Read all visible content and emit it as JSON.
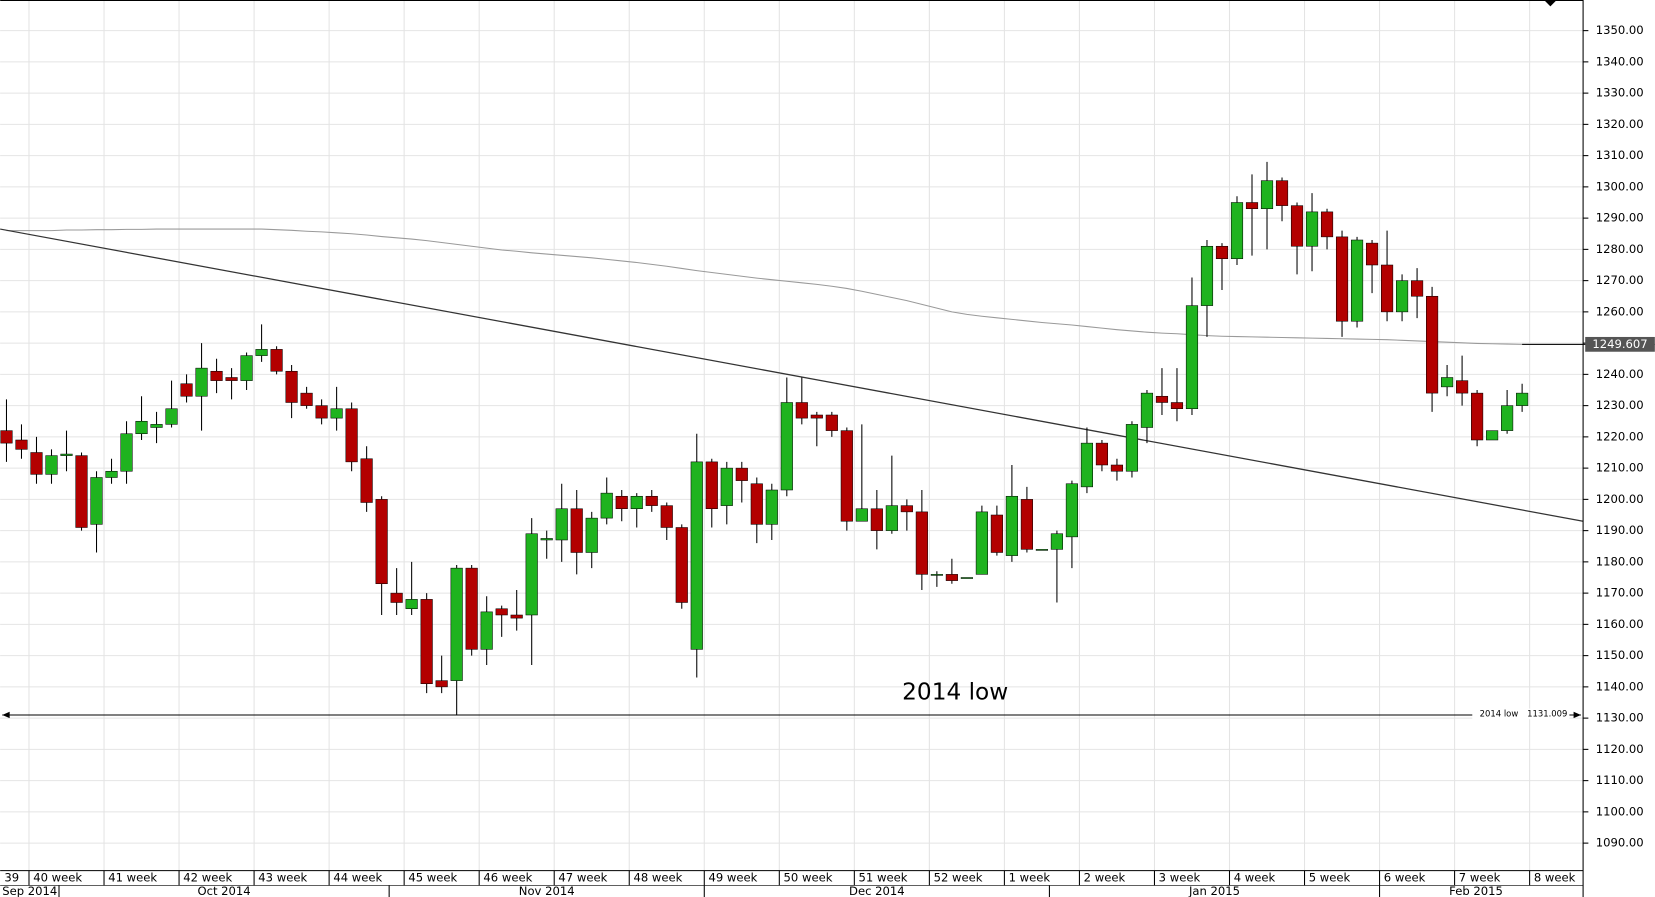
{
  "chart_data": {
    "type": "candlestick",
    "open": [
      1222,
      1219,
      1215,
      1208,
      1214,
      1214,
      1192,
      1207,
      1209,
      1221,
      1223,
      1224,
      1237,
      1233,
      1241,
      1239,
      1238,
      1246,
      1248,
      1241,
      1234,
      1230,
      1226,
      1229,
      1213,
      1200,
      1170,
      1165,
      1168,
      1142,
      1142,
      1178,
      1152,
      1165,
      1163,
      1163,
      1187,
      1187,
      1197,
      1183,
      1194,
      1201,
      1197,
      1201,
      1198,
      1191,
      1152,
      1212,
      1198,
      1210,
      1205,
      1192,
      1203,
      1231,
      1227,
      1227,
      1222,
      1193,
      1197,
      1190,
      1198,
      1196,
      1176,
      1176,
      1175,
      1176,
      1195,
      1182,
      1200,
      1184,
      1184,
      1188,
      1204,
      1218,
      1211,
      1209,
      1223,
      1233,
      1231,
      1229,
      1262,
      1281,
      1277,
      1295,
      1293,
      1302,
      1294,
      1281,
      1292,
      1284,
      1257,
      1282,
      1275,
      1260,
      1270,
      1265,
      1236,
      1238,
      1234,
      1219,
      1222,
      1230
    ],
    "high": [
      1232,
      1224,
      1220,
      1216,
      1222,
      1215,
      1209,
      1213,
      1225,
      1233,
      1228,
      1238,
      1240,
      1250,
      1245,
      1242,
      1247,
      1256,
      1249,
      1243,
      1236,
      1232,
      1236,
      1231,
      1217,
      1201,
      1178,
      1180,
      1170,
      1150,
      1179,
      1179,
      1169,
      1166,
      1171,
      1194,
      1190,
      1205,
      1203,
      1196,
      1207,
      1203,
      1202,
      1203,
      1199,
      1192,
      1221,
      1213,
      1212,
      1212,
      1207,
      1205,
      1239,
      1239,
      1228,
      1228,
      1223,
      1224,
      1203,
      1214,
      1200,
      1203,
      1177,
      1181,
      1175,
      1198,
      1198,
      1211,
      1204,
      1184,
      1190,
      1206,
      1223,
      1219,
      1213,
      1225,
      1235,
      1242,
      1242,
      1271,
      1283,
      1282,
      1297,
      1304,
      1308,
      1303,
      1295,
      1298,
      1293,
      1286,
      1284,
      1283,
      1286,
      1272,
      1274,
      1268,
      1243,
      1246,
      1235,
      1222,
      1235,
      1237
    ],
    "low": [
      1212,
      1213,
      1205,
      1205,
      1209,
      1190,
      1183,
      1205,
      1205,
      1219,
      1218,
      1223,
      1231,
      1222,
      1234,
      1232,
      1235,
      1244,
      1240,
      1226,
      1229,
      1224,
      1222,
      1209,
      1196,
      1163,
      1163,
      1163,
      1138,
      1138,
      1131,
      1150,
      1147,
      1156,
      1158,
      1147,
      1181,
      1180,
      1176,
      1178,
      1192,
      1193,
      1191,
      1196,
      1187,
      1165,
      1143,
      1191,
      1192,
      1199,
      1186,
      1187,
      1201,
      1224,
      1217,
      1220,
      1190,
      1193,
      1184,
      1189,
      1190,
      1171,
      1172,
      1173,
      1175,
      1176,
      1182,
      1180,
      1183,
      1184,
      1167,
      1178,
      1202,
      1209,
      1206,
      1207,
      1218,
      1227,
      1225,
      1227,
      1252,
      1267,
      1275,
      1278,
      1280,
      1289,
      1272,
      1273,
      1280,
      1252,
      1255,
      1266,
      1257,
      1257,
      1258,
      1228,
      1233,
      1230,
      1217,
      1219,
      1221,
      1228
    ],
    "close": [
      1218,
      1216,
      1208,
      1214,
      1214.5,
      1191,
      1207,
      1209,
      1221,
      1225,
      1224,
      1229,
      1233,
      1242,
      1238,
      1238,
      1246,
      1248,
      1241,
      1231,
      1230,
      1226,
      1229,
      1212,
      1199,
      1173,
      1167,
      1168,
      1141,
      1140,
      1178,
      1152,
      1164,
      1163,
      1162,
      1189,
      1187.5,
      1197,
      1183,
      1194,
      1202,
      1197,
      1201,
      1198,
      1191,
      1167,
      1212,
      1197,
      1210,
      1206,
      1192,
      1203,
      1231,
      1226,
      1226,
      1222,
      1193,
      1197,
      1190,
      1198,
      1196,
      1176,
      1176,
      1174,
      1175,
      1196,
      1183,
      1201,
      1184,
      1184,
      1189,
      1205,
      1218,
      1211,
      1209,
      1224,
      1234,
      1231,
      1229,
      1262,
      1281,
      1277,
      1295,
      1293,
      1302,
      1294,
      1281,
      1292,
      1284,
      1257,
      1283,
      1275,
      1260,
      1270,
      1265,
      1234,
      1239,
      1234,
      1219,
      1222,
      1230,
      1234
    ],
    "up_color": "#1fb31f",
    "down_color": "#b30000",
    "moving_average": {
      "color": "#9a9a9a",
      "values": [
        1286,
        1286,
        1286,
        1286,
        1286.2,
        1286.2,
        1286.3,
        1286.3,
        1286.4,
        1286.4,
        1286.5,
        1286.5,
        1286.5,
        1286.5,
        1286.5,
        1286.5,
        1286.5,
        1286.5,
        1286.3,
        1286.1,
        1285.8,
        1285.6,
        1285.3,
        1285,
        1284.6,
        1284.1,
        1283.7,
        1283.3,
        1282.8,
        1282.2,
        1281.6,
        1281,
        1280.4,
        1279.8,
        1279.4,
        1278.9,
        1278.5,
        1278.1,
        1277.7,
        1277.3,
        1276.8,
        1276.3,
        1275.8,
        1275.2,
        1274.6,
        1273.9,
        1273.2,
        1272.6,
        1272,
        1271.4,
        1270.8,
        1270.3,
        1269.8,
        1269.3,
        1268.8,
        1268.2,
        1267.5,
        1266.6,
        1265.6,
        1264.6,
        1263.6,
        1262.4,
        1261.2,
        1260,
        1259.2,
        1258.6,
        1258.1,
        1257.6,
        1257.1,
        1256.6,
        1256.2,
        1255.8,
        1255.3,
        1254.8,
        1254.3,
        1253.9,
        1253.5,
        1253.2,
        1253,
        1252.7,
        1252.4,
        1252.2,
        1252.1,
        1252,
        1251.9,
        1251.8,
        1251.7,
        1251.6,
        1251.5,
        1251.4,
        1251.3,
        1251.2,
        1251.1,
        1250.9,
        1250.7,
        1250.5,
        1250.3,
        1250.1,
        1249.9,
        1249.8,
        1249.7,
        1249.6
      ],
      "last": {
        "value": 1249.607,
        "label": "1249.607"
      }
    },
    "trendline": {
      "color": "#333333",
      "values": [
        1286.5,
        1193
      ]
    },
    "support": {
      "name": "2014 low",
      "value": 1131.009,
      "label": "1131.009"
    },
    "annotation": "2014 low",
    "week_labels": [
      "39",
      "40 week",
      "41 week",
      "42 week",
      "43 week",
      "44 week",
      "45 week",
      "46 week",
      "47 week",
      "48 week",
      "49 week",
      "50 week",
      "51 week",
      "52 week",
      "1 week",
      "2 week",
      "3 week",
      "4 week",
      "5 week",
      "6 week",
      "7 week",
      "8 week"
    ],
    "month_labels": [
      "Sep 2014",
      "Oct 2014",
      "Nov 2014",
      "Dec 2014",
      "Jan 2015",
      "Feb 2015"
    ],
    "ylim": [
      1081.2,
      1359.8
    ],
    "yticks": [
      {
        "value": 1090,
        "label": "1090.00"
      },
      {
        "value": 1100,
        "label": "1100.00"
      },
      {
        "value": 1110,
        "label": "1110.00"
      },
      {
        "value": 1120,
        "label": "1120.00"
      },
      {
        "value": 1130,
        "label": "1130.00"
      },
      {
        "value": 1140,
        "label": "1140.00"
      },
      {
        "value": 1150,
        "label": "1150.00"
      },
      {
        "value": 1160,
        "label": "1160.00"
      },
      {
        "value": 1170,
        "label": "1170.00"
      },
      {
        "value": 1180,
        "label": "1180.00"
      },
      {
        "value": 1190,
        "label": "1190.00"
      },
      {
        "value": 1200,
        "label": "1200.00"
      },
      {
        "value": 1210,
        "label": "1210.00"
      },
      {
        "value": 1220,
        "label": "1220.00"
      },
      {
        "value": 1230,
        "label": "1230.00"
      },
      {
        "value": 1240,
        "label": "1240.00"
      },
      {
        "value": 1250,
        "label": "1250.00"
      },
      {
        "value": 1260,
        "label": "1260.00"
      },
      {
        "value": 1270,
        "label": "1270.00"
      },
      {
        "value": 1280,
        "label": "1280.00"
      },
      {
        "value": 1290,
        "label": "1290.00"
      },
      {
        "value": 1300,
        "label": "1300.00"
      },
      {
        "value": 1310,
        "label": "1310.00"
      },
      {
        "value": 1320,
        "label": "1320.00"
      },
      {
        "value": 1330,
        "label": "1330.00"
      },
      {
        "value": 1340,
        "label": "1340.00"
      },
      {
        "value": 1350,
        "label": "1350.00"
      }
    ],
    "grid": true
  }
}
